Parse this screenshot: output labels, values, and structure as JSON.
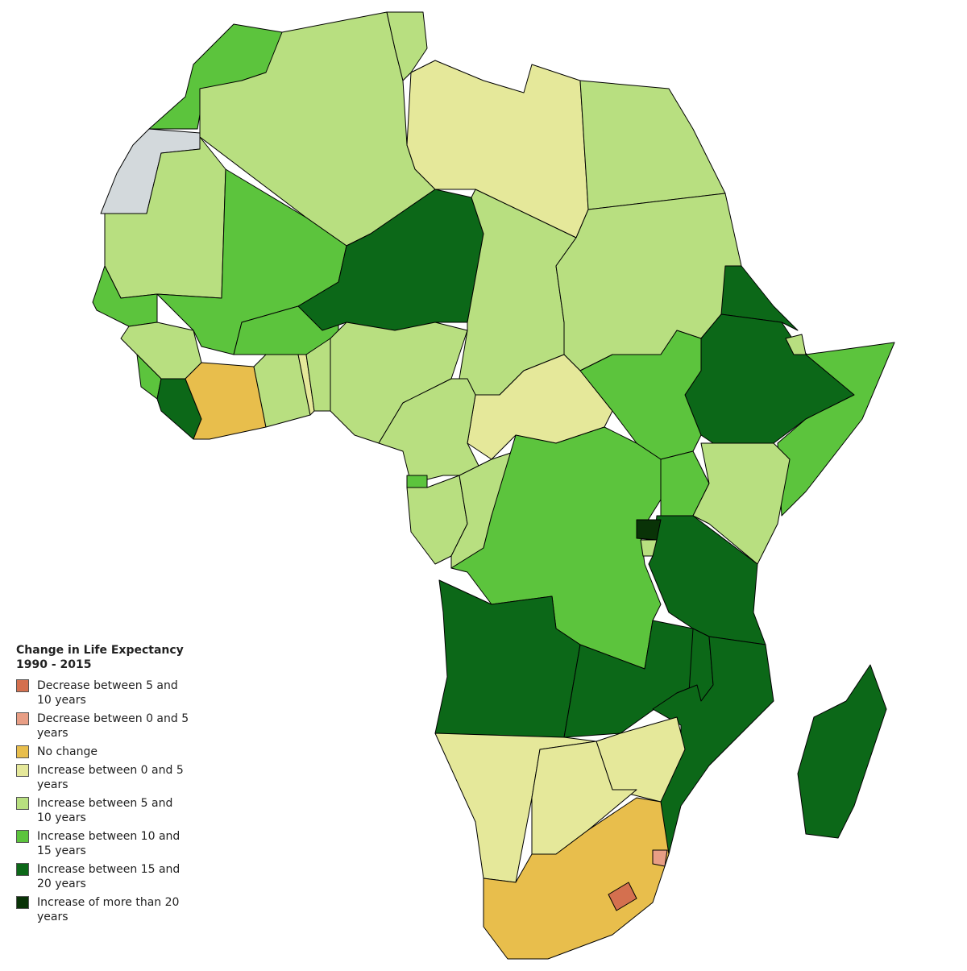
{
  "legend": {
    "title": "Change in Life Expectancy 1990 - 2015",
    "items": [
      {
        "label": "Decrease between 5 and 10 years",
        "color": "#d4704f"
      },
      {
        "label": "Decrease between 0 and 5 years",
        "color": "#e89e85"
      },
      {
        "label": "No change",
        "color": "#e8be4c"
      },
      {
        "label": "Increase between 0 and 5 years",
        "color": "#e5e89a"
      },
      {
        "label": "Increase between 5 and 10 years",
        "color": "#b8df80"
      },
      {
        "label": "Increase between 10 and 15 years",
        "color": "#5cc43d"
      },
      {
        "label": "Increase between 15 and 20 years",
        "color": "#0c6818"
      },
      {
        "label": "Increase of more than 20 years",
        "color": "#093307"
      }
    ]
  }
}
